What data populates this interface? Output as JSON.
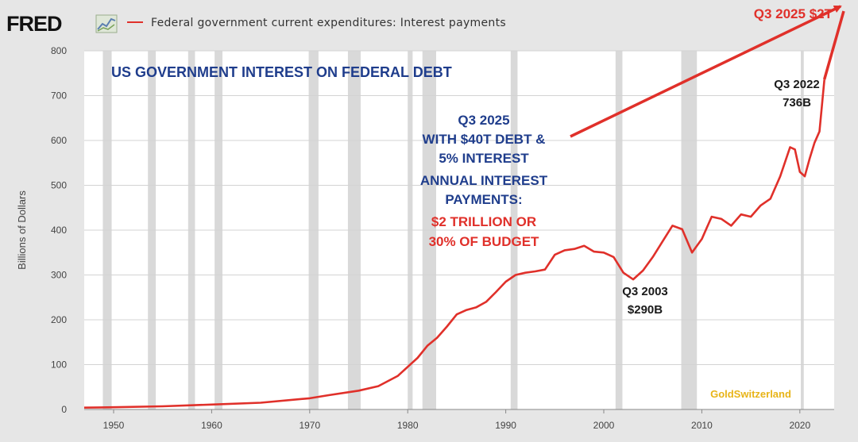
{
  "logo": {
    "text": "FRED",
    "icon": "chart-line-icon"
  },
  "colors": {
    "line": "#e0302a",
    "title": "#1f3d8c",
    "recession": "#d9d9d9",
    "plot_bg": "#ffffff",
    "watermark": "#e8b418"
  },
  "chart_data": {
    "type": "line",
    "title": "US GOVERNMENT INTEREST ON FEDERAL DEBT",
    "ylabel": "Billions of Dollars",
    "xlim": [
      1947,
      2023.5
    ],
    "ylim": [
      0,
      800
    ],
    "yticks": [
      0,
      100,
      200,
      300,
      400,
      500,
      600,
      700,
      800
    ],
    "xticks": [
      1950,
      1960,
      1970,
      1980,
      1990,
      2000,
      2010,
      2020
    ],
    "grid": "horizontal",
    "recessions": [
      [
        1948.9,
        1949.8
      ],
      [
        1953.5,
        1954.3
      ],
      [
        1957.6,
        1958.3
      ],
      [
        1960.3,
        1961.1
      ],
      [
        1969.9,
        1970.9
      ],
      [
        1973.9,
        1975.2
      ],
      [
        1980.0,
        1980.5
      ],
      [
        1981.5,
        1982.9
      ],
      [
        1990.5,
        1991.2
      ],
      [
        2001.2,
        2001.9
      ],
      [
        2007.9,
        2009.5
      ],
      [
        2020.1,
        2020.4
      ]
    ],
    "series": [
      {
        "name": "Federal government current expenditures: Interest payments",
        "x": [
          1947,
          1950,
          1955,
          1960,
          1965,
          1970,
          1972,
          1975,
          1977,
          1979,
          1980,
          1981,
          1982,
          1983,
          1984,
          1985,
          1986,
          1987,
          1988,
          1989,
          1990,
          1991,
          1992,
          1993,
          1994,
          1995,
          1996,
          1997,
          1998,
          1999,
          2000,
          2001,
          2002,
          2003,
          2004,
          2005,
          2006,
          2007,
          2008,
          2009,
          2010,
          2011,
          2012,
          2013,
          2014,
          2015,
          2016,
          2017,
          2018,
          2019,
          2019.5,
          2020,
          2020.5,
          2021,
          2021.5,
          2022,
          2022.5
        ],
        "y": [
          4,
          5,
          7,
          11,
          15,
          25,
          32,
          42,
          52,
          75,
          95,
          115,
          142,
          160,
          185,
          212,
          222,
          228,
          240,
          262,
          285,
          300,
          305,
          308,
          312,
          345,
          355,
          358,
          365,
          352,
          350,
          340,
          305,
          290,
          310,
          340,
          375,
          410,
          402,
          350,
          380,
          430,
          425,
          410,
          435,
          430,
          455,
          470,
          520,
          585,
          580,
          530,
          520,
          560,
          595,
          620,
          736
        ]
      }
    ],
    "projection": {
      "from": [
        2022.5,
        736
      ],
      "label": "Q3 2025 $2T"
    },
    "annotations": {
      "q3_2022": [
        "Q3 2022",
        "736B"
      ],
      "q3_2003": [
        "Q3 2003",
        "$290B"
      ],
      "projection_blue": [
        "Q3 2025",
        "WITH $40T DEBT &",
        "5% INTEREST",
        "ANNUAL INTEREST",
        "PAYMENTS:"
      ],
      "projection_red": [
        "$2 TRILLION OR",
        "30% OF BUDGET"
      ]
    },
    "watermark": "GoldSwitzerland"
  }
}
